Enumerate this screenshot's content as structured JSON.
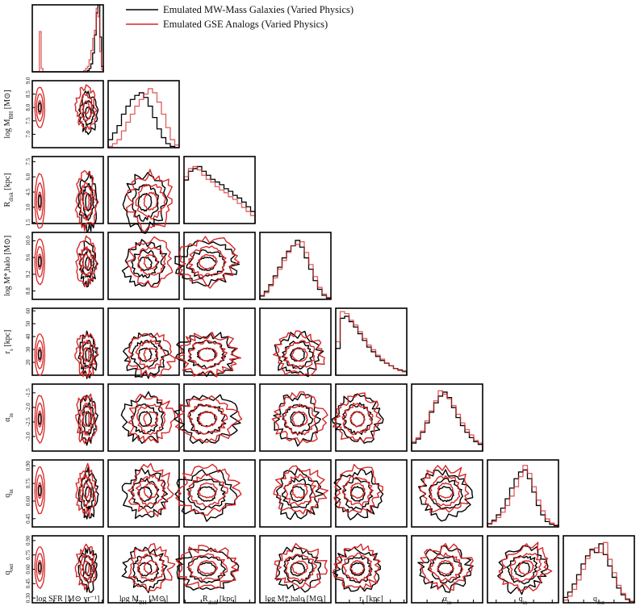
{
  "chart_data": {
    "type": "corner",
    "legend": {
      "position": "top"
    },
    "colors": {
      "mw": "#000000",
      "gse": "#d62728"
    },
    "series": [
      {
        "key": "mw",
        "name": "Emulated MW-Mass Galaxies (Varied Physics)"
      },
      {
        "key": "gse",
        "name": "Emulated GSE Analogs (Varied Physics)"
      }
    ],
    "parameters": [
      {
        "key": "sfr",
        "label": "log SFR [M⊙ yr⁻¹]",
        "range": [
          -5.0,
          1.6
        ],
        "ticks": [
          "-3.0",
          "-1.5",
          "0.0",
          "1.5"
        ],
        "mw_mean": 0.2,
        "gse_mean": 0.0,
        "mw_sd": 0.45,
        "gse_sd": 0.5
      },
      {
        "key": "mbh",
        "label": "log M_BH [M⊙]",
        "range": [
          6.5,
          9.0
        ],
        "ticks": [
          "7.0",
          "7.5",
          "8.0",
          "8.5",
          "9.0"
        ],
        "mw_mean": 7.8,
        "gse_mean": 8.0,
        "mw_sd": 0.4,
        "gse_sd": 0.42
      },
      {
        "key": "rdisk",
        "label": "R_disk [kpc]",
        "range": [
          1.4,
          8.0
        ],
        "ticks": [
          "1.5",
          "3.0",
          "4.5",
          "6.0",
          "7.5"
        ],
        "mw_mean": 3.5,
        "gse_mean": 3.6,
        "mw_sd": 1.5,
        "gse_sd": 1.5
      },
      {
        "key": "mhalo",
        "label": "log M*,halo [M⊙]",
        "range": [
          8.6,
          10.2
        ],
        "ticks": [
          "8.8",
          "9.2",
          "9.6",
          "10.0"
        ],
        "mw_mean": 9.45,
        "gse_mean": 9.5,
        "mw_sd": 0.28,
        "gse_sd": 0.3
      },
      {
        "key": "rs",
        "label": "r_s [kpc]",
        "range": [
          10,
          62
        ],
        "ticks": [
          "20",
          "30",
          "40",
          "50",
          "60"
        ],
        "mw_mean": 26,
        "gse_mean": 26,
        "mw_sd": 9,
        "gse_sd": 9
      },
      {
        "key": "ain",
        "label": "α_in",
        "range": [
          -3.5,
          -1.2
        ],
        "ticks": [
          "-3.0",
          "-2.5",
          "-2.0",
          "-1.5"
        ],
        "mw_mean": -2.4,
        "gse_mean": -2.4,
        "mw_sd": 0.45,
        "gse_sd": 0.45
      },
      {
        "key": "qin",
        "label": "q_in",
        "range": [
          0.38,
          0.95
        ],
        "ticks": [
          "0.45",
          "0.60",
          "0.75",
          "0.90"
        ],
        "mw_mean": 0.66,
        "gse_mean": 0.69,
        "mw_sd": 0.11,
        "gse_sd": 0.11
      },
      {
        "key": "qout",
        "label": "q_out",
        "range": [
          0.25,
          0.95
        ],
        "ticks": [
          "0.30",
          "0.45",
          "0.60",
          "0.75",
          "0.90"
        ],
        "mw_mean": 0.6,
        "gse_mean": 0.62,
        "mw_sd": 0.12,
        "gse_sd": 0.12
      }
    ],
    "histograms": {
      "sfr": {
        "mw": [
          0,
          0,
          0,
          0,
          0,
          0,
          0,
          0,
          0,
          0,
          0,
          0,
          0,
          0,
          0,
          0,
          0,
          0,
          0,
          0,
          0,
          0,
          0,
          0,
          0,
          0,
          0,
          0,
          0,
          0,
          0,
          0.02,
          0.05,
          0.12,
          0.28,
          0.55,
          0.88,
          1.0,
          0.52,
          0.08
        ],
        "gse": [
          0,
          0,
          0,
          0,
          0.6,
          0.05,
          0,
          0,
          0,
          0,
          0,
          0,
          0,
          0,
          0,
          0,
          0,
          0,
          0,
          0,
          0,
          0,
          0,
          0,
          0,
          0,
          0,
          0,
          0,
          0.02,
          0.05,
          0.08,
          0.18,
          0.32,
          0.5,
          0.62,
          0.95,
          0.82,
          0.3,
          0.03
        ]
      },
      "mbh": {
        "mw": [
          0.12,
          0.22,
          0.33,
          0.5,
          0.62,
          0.72,
          0.78,
          0.82,
          0.75,
          0.62,
          0.45,
          0.28,
          0.15,
          0.06,
          0.02,
          0.0
        ],
        "gse": [
          0.02,
          0.06,
          0.12,
          0.25,
          0.38,
          0.5,
          0.62,
          0.72,
          0.8,
          0.88,
          0.82,
          0.68,
          0.5,
          0.3,
          0.12,
          0.04
        ]
      },
      "rdisk": {
        "mw": [
          0.65,
          0.78,
          0.82,
          0.85,
          0.78,
          0.72,
          0.66,
          0.62,
          0.58,
          0.52,
          0.48,
          0.42,
          0.38,
          0.32,
          0.25,
          0.18
        ],
        "gse": [
          0.7,
          0.82,
          0.85,
          0.8,
          0.72,
          0.66,
          0.62,
          0.55,
          0.5,
          0.46,
          0.4,
          0.36,
          0.3,
          0.24,
          0.18,
          0.12
        ]
      },
      "mhalo": {
        "mw": [
          0.05,
          0.12,
          0.22,
          0.35,
          0.48,
          0.62,
          0.72,
          0.8,
          0.88,
          0.78,
          0.62,
          0.45,
          0.28,
          0.15,
          0.06,
          0.02
        ],
        "gse": [
          0.06,
          0.1,
          0.2,
          0.32,
          0.45,
          0.58,
          0.7,
          0.8,
          0.82,
          0.86,
          0.7,
          0.52,
          0.34,
          0.18,
          0.08,
          0.03
        ]
      },
      "rs": {
        "mw": [
          0.4,
          0.85,
          0.88,
          0.8,
          0.72,
          0.62,
          0.52,
          0.42,
          0.35,
          0.28,
          0.22,
          0.18,
          0.14,
          0.1,
          0.08,
          0.06
        ],
        "gse": [
          0.5,
          0.95,
          0.92,
          0.82,
          0.75,
          0.65,
          0.55,
          0.45,
          0.38,
          0.3,
          0.24,
          0.18,
          0.14,
          0.1,
          0.07,
          0.05
        ]
      },
      "ain": {
        "mw": [
          0.12,
          0.18,
          0.28,
          0.42,
          0.58,
          0.72,
          0.82,
          0.88,
          0.8,
          0.65,
          0.5,
          0.38,
          0.28,
          0.2,
          0.14,
          0.1
        ],
        "gse": [
          0.14,
          0.2,
          0.3,
          0.45,
          0.6,
          0.75,
          0.9,
          0.85,
          0.78,
          0.68,
          0.55,
          0.42,
          0.32,
          0.24,
          0.16,
          0.12
        ]
      },
      "qin": {
        "mw": [
          0.05,
          0.1,
          0.18,
          0.28,
          0.42,
          0.58,
          0.72,
          0.82,
          0.85,
          0.72,
          0.52,
          0.32,
          0.18,
          0.08,
          0.04,
          0.02
        ],
        "gse": [
          0.04,
          0.08,
          0.14,
          0.22,
          0.32,
          0.46,
          0.6,
          0.75,
          0.92,
          0.8,
          0.6,
          0.4,
          0.24,
          0.12,
          0.06,
          0.03
        ]
      },
      "qout": {
        "mw": [
          0.08,
          0.16,
          0.28,
          0.42,
          0.58,
          0.7,
          0.8,
          0.75,
          0.88,
          0.72,
          0.55,
          0.38,
          0.22,
          0.12,
          0.05,
          0.02
        ],
        "gse": [
          0.04,
          0.1,
          0.2,
          0.34,
          0.5,
          0.66,
          0.78,
          0.82,
          0.75,
          0.9,
          0.65,
          0.45,
          0.26,
          0.14,
          0.06,
          0.02
        ]
      }
    },
    "correlations": {
      "qin_qout": 0.7,
      "rdisk_mbh": -0.1,
      "mhalo_rdisk": 0.1
    }
  }
}
